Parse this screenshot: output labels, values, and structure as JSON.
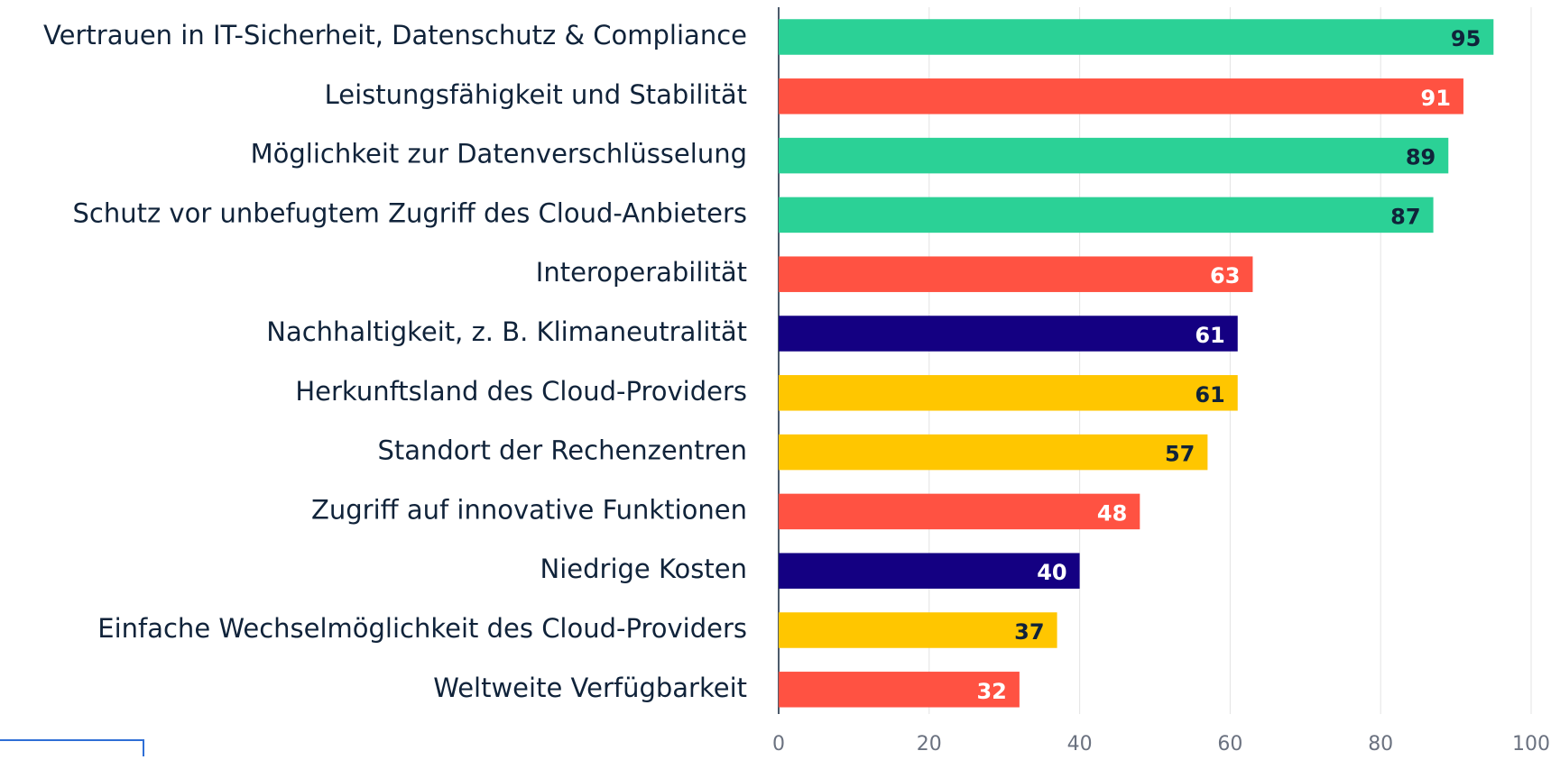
{
  "chart_data": {
    "type": "hbar",
    "categories": [
      "Vertrauen in IT-Sicherheit, Datenschutz & Compliance",
      "Leistungsfähigkeit und Stabilität",
      "Möglichkeit zur Datenverschlüsselung",
      "Schutz vor unbefugtem Zugriff des Cloud-Anbieters",
      "Interoperabilität",
      "Nachhaltigkeit, z. B. Klimaneutralität",
      "Herkunftsland des Cloud-Providers",
      "Standort der Rechenzentren",
      "Zugriff auf innovative Funktionen",
      "Niedrige Kosten",
      "Einfache Wechselmöglichkeit des Cloud-Providers",
      "Weltweite Verfügbarkeit"
    ],
    "values": [
      95,
      91,
      89,
      87,
      63,
      61,
      61,
      57,
      48,
      40,
      37,
      32
    ],
    "colors": [
      "#2bd196",
      "#ff5242",
      "#2bd196",
      "#2bd196",
      "#ff5242",
      "#140082",
      "#ffc600",
      "#ffc600",
      "#ff5242",
      "#140082",
      "#ffc600",
      "#ff5242"
    ],
    "value_label_colors": [
      "#10233a",
      "#ffffff",
      "#10233a",
      "#10233a",
      "#ffffff",
      "#ffffff",
      "#10233a",
      "#10233a",
      "#ffffff",
      "#ffffff",
      "#10233a",
      "#ffffff"
    ],
    "xlim": [
      0,
      100
    ],
    "xticks": [
      0,
      20,
      40,
      60,
      80,
      100
    ],
    "grid": true
  }
}
